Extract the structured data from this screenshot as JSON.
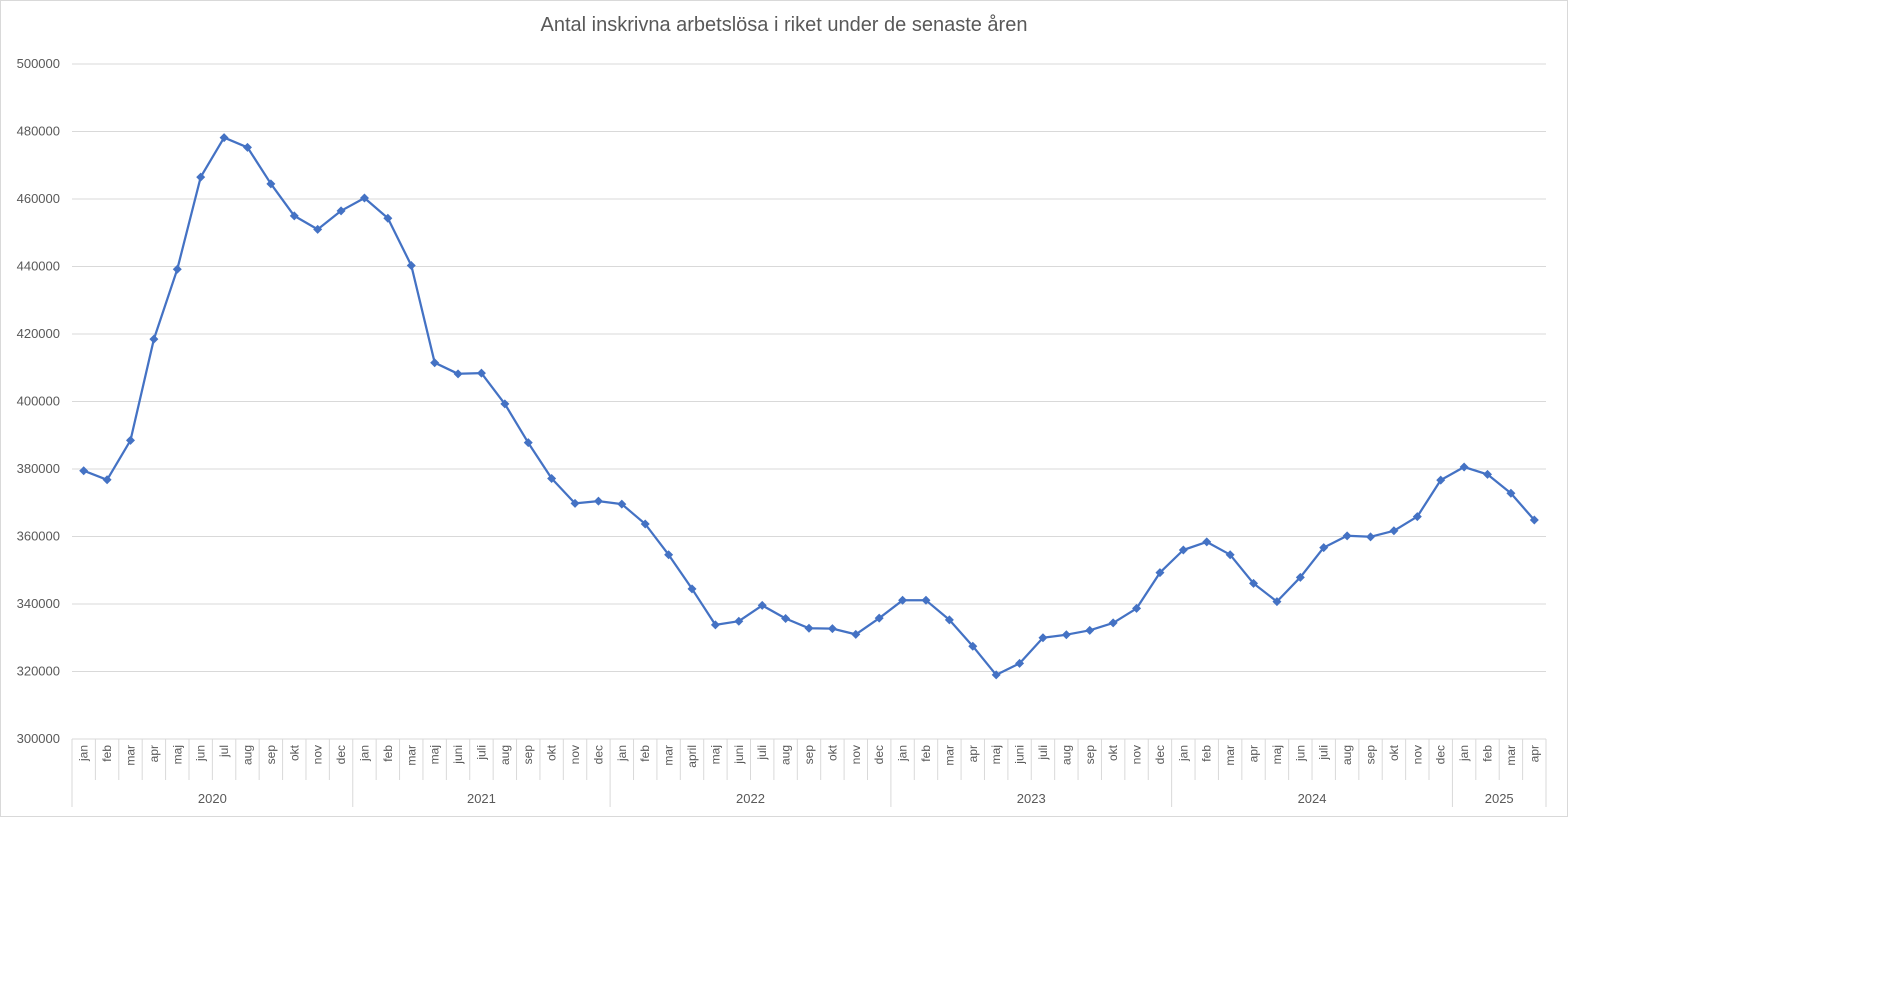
{
  "chart_data": {
    "type": "line",
    "title": "Antal inskrivna arbetslösa i riket under de senaste åren",
    "xlabel": "",
    "ylabel": "",
    "ylim": [
      300000,
      500000
    ],
    "yticks": [
      "300000",
      "320000",
      "340000",
      "360000",
      "380000",
      "400000",
      "420000",
      "440000",
      "460000",
      "480000",
      "500000"
    ],
    "grid": true,
    "legend": "none",
    "line_color": "#4472c4",
    "years": [
      {
        "label": "2020",
        "months": 12
      },
      {
        "label": "2021",
        "months": 11
      },
      {
        "label": "2022",
        "months": 12
      },
      {
        "label": "2023",
        "months": 12
      },
      {
        "label": "2024",
        "months": 12
      },
      {
        "label": "2025",
        "months": 4
      }
    ],
    "categories": [
      "jan",
      "feb",
      "mar",
      "apr",
      "maj",
      "jun",
      "jul",
      "aug",
      "sep",
      "okt",
      "nov",
      "dec",
      "jan",
      "feb",
      "mar",
      "maj",
      "juni",
      "juli",
      "aug",
      "sep",
      "okt",
      "nov",
      "dec",
      "jan",
      "feb",
      "mar",
      "april",
      "maj",
      "juni",
      "juli",
      "aug",
      "sep",
      "okt",
      "nov",
      "dec",
      "jan",
      "feb",
      "mar",
      "apr",
      "maj",
      "juni",
      "juli",
      "aug",
      "sep",
      "okt",
      "nov",
      "dec",
      "jan",
      "feb",
      "mar",
      "apr",
      "maj",
      "jun",
      "juli",
      "aug",
      "sep",
      "okt",
      "nov",
      "dec",
      "jan",
      "feb",
      "mar",
      "apr"
    ],
    "values": [
      379500,
      376800,
      388500,
      418500,
      439200,
      466500,
      478200,
      475300,
      464500,
      455000,
      451000,
      456500,
      460300,
      454300,
      440300,
      411500,
      408200,
      408400,
      399300,
      387800,
      377200,
      369800,
      370500,
      369600,
      363700,
      354600,
      344500,
      333800,
      334900,
      339600,
      335700,
      332800,
      332700,
      331000,
      335800,
      341100,
      341100,
      335300,
      327500,
      319000,
      322400,
      330000,
      330900,
      332200,
      334400,
      338700,
      349300,
      356000,
      358400,
      354600,
      346100,
      340700,
      347900,
      356700,
      360200,
      359900,
      361700,
      365900,
      376700,
      380600,
      378400,
      372800,
      364900
    ]
  }
}
